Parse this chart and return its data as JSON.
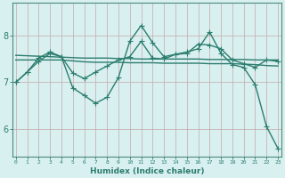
{
  "xlabel": "Humidex (Indice chaleur)",
  "x": [
    0,
    1,
    2,
    3,
    4,
    5,
    6,
    7,
    8,
    9,
    10,
    11,
    12,
    13,
    14,
    15,
    16,
    17,
    18,
    19,
    20,
    21,
    22,
    23
  ],
  "line1_y": [
    7.0,
    7.22,
    7.45,
    7.62,
    7.55,
    6.88,
    6.72,
    6.55,
    6.68,
    7.1,
    7.88,
    8.22,
    7.85,
    7.55,
    7.6,
    7.65,
    7.72,
    8.08,
    7.62,
    7.38,
    7.32,
    6.95,
    6.05,
    5.58
  ],
  "line2_y": [
    7.0,
    7.22,
    7.52,
    7.65,
    7.55,
    7.2,
    7.08,
    7.22,
    7.35,
    7.48,
    7.55,
    7.88,
    7.52,
    7.5,
    7.6,
    7.62,
    7.82,
    7.8,
    7.72,
    7.48,
    7.4,
    7.32,
    7.48,
    7.45
  ],
  "line3_y": [
    7.58,
    7.57,
    7.56,
    7.55,
    7.54,
    7.53,
    7.52,
    7.52,
    7.52,
    7.51,
    7.51,
    7.5,
    7.5,
    7.5,
    7.5,
    7.5,
    7.5,
    7.49,
    7.49,
    7.49,
    7.49,
    7.48,
    7.48,
    7.48
  ],
  "line4_y": [
    7.48,
    7.48,
    7.48,
    7.48,
    7.48,
    7.46,
    7.44,
    7.43,
    7.43,
    7.43,
    7.42,
    7.42,
    7.42,
    7.41,
    7.41,
    7.41,
    7.41,
    7.4,
    7.4,
    7.4,
    7.39,
    7.38,
    7.36,
    7.35
  ],
  "line_color": "#2d7d6e",
  "bg_color": "#d8f0f0",
  "grid_color": "#c8a8a8",
  "axis_bg": "#d8f0f0",
  "ylim": [
    5.4,
    8.7
  ],
  "xlim": [
    -0.3,
    23.3
  ],
  "yticks": [
    6,
    7,
    8
  ],
  "markersize": 2.5,
  "linewidth": 1.0
}
